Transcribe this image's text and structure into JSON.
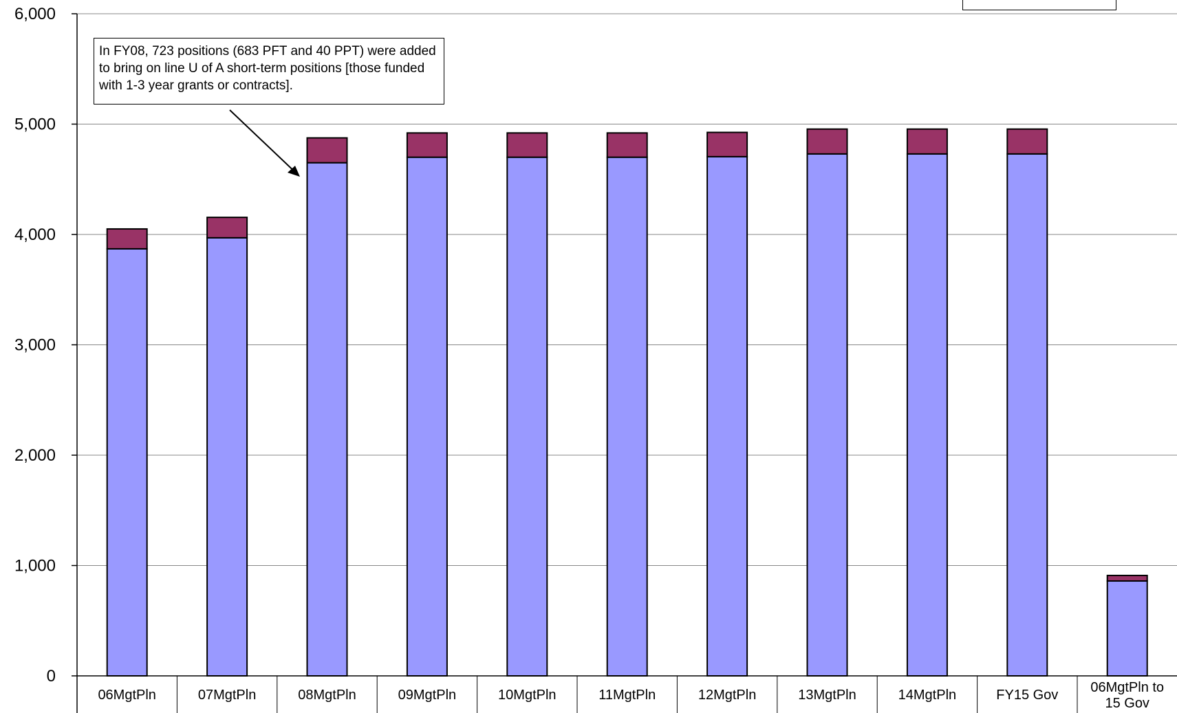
{
  "chart_data": {
    "type": "bar",
    "stacked": true,
    "categories": [
      "06MgtPln",
      "07MgtPln",
      "08MgtPln",
      "09MgtPln",
      "10MgtPln",
      "11MgtPln",
      "12MgtPln",
      "13MgtPln",
      "14MgtPln",
      "FY15 Gov",
      "06MgtPln to\n15 Gov"
    ],
    "series": [
      {
        "values": [
          3870,
          3970,
          4650,
          4700,
          4700,
          4700,
          4705,
          4730,
          4730,
          4730,
          860
        ],
        "color": "#9999ff"
      },
      {
        "values": [
          180,
          185,
          225,
          220,
          220,
          220,
          220,
          225,
          225,
          225,
          50
        ],
        "color": "#993366"
      }
    ],
    "ylim": [
      0,
      6000
    ],
    "yticks": [
      "0",
      "1,000",
      "2,000",
      "3,000",
      "4,000",
      "5,000",
      "6,000"
    ],
    "grid": true,
    "annotation": "In FY08, 723 positions (683 PFT and 40 PPT) were added to bring on line U of A short-term positions [those funded with 1-3 year grants or contracts]."
  }
}
